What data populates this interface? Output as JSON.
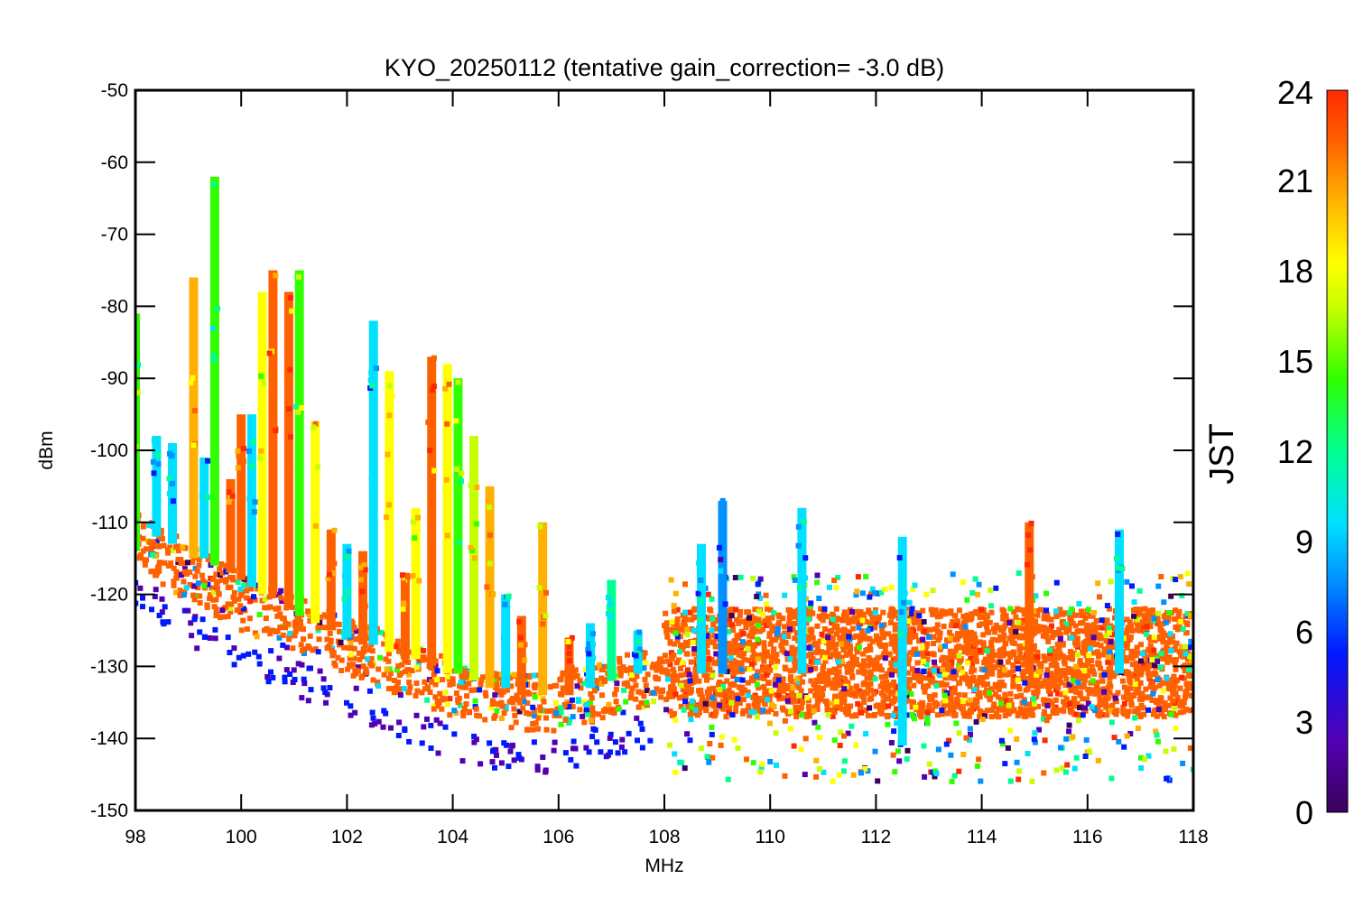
{
  "chart_data": {
    "type": "scatter",
    "title": "KYO_20250112 (tentative gain_correction= -3.0 dB)",
    "xlabel": "MHz",
    "ylabel": "dBm",
    "xlim": [
      98,
      118
    ],
    "ylim": [
      -150,
      -50
    ],
    "x_ticks": [
      98,
      100,
      102,
      104,
      106,
      108,
      110,
      112,
      114,
      116,
      118
    ],
    "y_ticks": [
      -50,
      -60,
      -70,
      -80,
      -90,
      -100,
      -110,
      -120,
      -130,
      -140,
      -150
    ],
    "grid": false,
    "colorbar": {
      "label": "JST",
      "range": [
        0,
        24
      ],
      "ticks": [
        0,
        3,
        6,
        9,
        12,
        15,
        18,
        21,
        24
      ],
      "colormap": [
        "#3a005a",
        "#5200b4",
        "#0018ff",
        "#0090ff",
        "#00e0ff",
        "#00ff90",
        "#30ff00",
        "#c8ff00",
        "#ffff00",
        "#ffb000",
        "#ff6000",
        "#ff2a00"
      ]
    },
    "noise_floor": {
      "x": [
        98,
        99,
        100,
        101,
        102,
        103,
        104,
        105,
        106,
        107,
        108,
        109,
        110,
        111,
        112,
        113,
        114,
        115,
        116,
        117,
        118
      ],
      "y": [
        -112,
        -117,
        -121,
        -124,
        -127,
        -130,
        -133,
        -135,
        -135,
        -133,
        -131,
        -131,
        -131,
        -131,
        -131,
        -131,
        -131,
        -131,
        -131,
        -131,
        -131
      ]
    },
    "series": [
      {
        "x": 98.0,
        "y_min": -114,
        "y_max": -81,
        "hour": 14
      },
      {
        "x": 98.4,
        "y_min": -112,
        "y_max": -98,
        "hour": 8
      },
      {
        "x": 98.7,
        "y_min": -113,
        "y_max": -99,
        "hour": 8
      },
      {
        "x": 99.1,
        "y_min": -115,
        "y_max": -76,
        "hour": 19
      },
      {
        "x": 99.3,
        "y_min": -115,
        "y_max": -101,
        "hour": 8
      },
      {
        "x": 99.5,
        "y_min": -116,
        "y_max": -62,
        "hour": 12
      },
      {
        "x": 99.8,
        "y_min": -117,
        "y_max": -104,
        "hour": 22
      },
      {
        "x": 100.0,
        "y_min": -118,
        "y_max": -95,
        "hour": 22
      },
      {
        "x": 100.2,
        "y_min": -119,
        "y_max": -95,
        "hour": 8
      },
      {
        "x": 100.4,
        "y_min": -120,
        "y_max": -78,
        "hour": 17
      },
      {
        "x": 100.6,
        "y_min": -120,
        "y_max": -75,
        "hour": 22
      },
      {
        "x": 100.9,
        "y_min": -122,
        "y_max": -78,
        "hour": 21
      },
      {
        "x": 101.1,
        "y_min": -123,
        "y_max": -75,
        "hour": 14
      },
      {
        "x": 101.4,
        "y_min": -124,
        "y_max": -96,
        "hour": 18
      },
      {
        "x": 101.7,
        "y_min": -125,
        "y_max": -111,
        "hour": 22
      },
      {
        "x": 102.0,
        "y_min": -126,
        "y_max": -113,
        "hour": 8
      },
      {
        "x": 102.3,
        "y_min": -127,
        "y_max": -114,
        "hour": 22
      },
      {
        "x": 102.5,
        "y_min": -127,
        "y_max": -82,
        "hour": 8
      },
      {
        "x": 102.8,
        "y_min": -128,
        "y_max": -89,
        "hour": 17
      },
      {
        "x": 103.1,
        "y_min": -129,
        "y_max": -117,
        "hour": 22
      },
      {
        "x": 103.3,
        "y_min": -129,
        "y_max": -108,
        "hour": 17
      },
      {
        "x": 103.6,
        "y_min": -130,
        "y_max": -87,
        "hour": 21
      },
      {
        "x": 103.9,
        "y_min": -131,
        "y_max": -88,
        "hour": 18
      },
      {
        "x": 104.1,
        "y_min": -131,
        "y_max": -90,
        "hour": 14
      },
      {
        "x": 104.4,
        "y_min": -132,
        "y_max": -98,
        "hour": 16
      },
      {
        "x": 104.7,
        "y_min": -133,
        "y_max": -105,
        "hour": 19
      },
      {
        "x": 105.0,
        "y_min": -133,
        "y_max": -120,
        "hour": 8
      },
      {
        "x": 105.3,
        "y_min": -134,
        "y_max": -123,
        "hour": 22
      },
      {
        "x": 105.7,
        "y_min": -134,
        "y_max": -110,
        "hour": 19
      },
      {
        "x": 106.2,
        "y_min": -134,
        "y_max": -126,
        "hour": 22
      },
      {
        "x": 106.6,
        "y_min": -133,
        "y_max": -124,
        "hour": 9
      },
      {
        "x": 107.0,
        "y_min": -132,
        "y_max": -118,
        "hour": 10
      },
      {
        "x": 107.5,
        "y_min": -131,
        "y_max": -125,
        "hour": 8
      },
      {
        "x": 108.7,
        "y_min": -131,
        "y_max": -113,
        "hour": 8
      },
      {
        "x": 109.1,
        "y_min": -131,
        "y_max": -107,
        "hour": 7
      },
      {
        "x": 110.6,
        "y_min": -131,
        "y_max": -108,
        "hour": 8
      },
      {
        "x": 112.5,
        "y_min": -141,
        "y_max": -112,
        "hour": 8
      },
      {
        "x": 114.9,
        "y_min": -131,
        "y_max": -110,
        "hour": 22
      },
      {
        "x": 116.6,
        "y_min": -131,
        "y_max": -111,
        "hour": 8
      }
    ],
    "band_108_118": {
      "x_range": [
        108,
        118
      ],
      "y_core": [
        -137,
        -122
      ],
      "y_spread": [
        -146,
        -117
      ],
      "hour": 22
    }
  }
}
